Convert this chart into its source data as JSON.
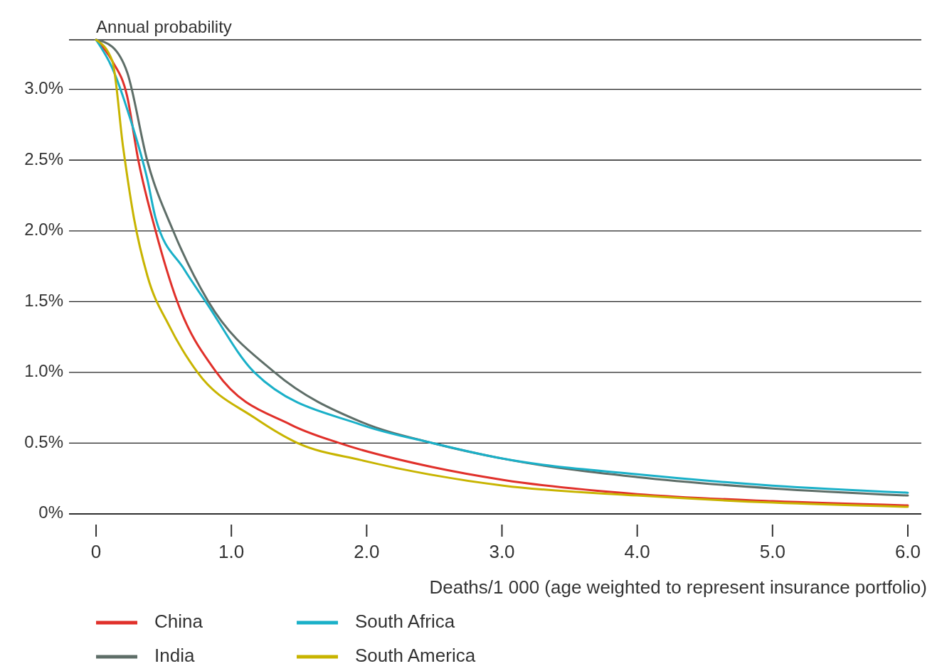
{
  "chart_data": {
    "type": "line",
    "ylabel": "Annual probability",
    "xlabel": "Deaths/1 000 (age weighted to represent insurance portfolio)",
    "xlim": [
      -0.2,
      6.1
    ],
    "ylim": [
      0,
      3.35
    ],
    "xticks": [
      0,
      {
        "value": 1,
        "label": "1.0"
      },
      {
        "value": 2,
        "label": "2.0"
      },
      {
        "value": 3,
        "label": "3.0"
      },
      {
        "value": 4,
        "label": "4.0"
      },
      {
        "value": 5,
        "label": "5.0"
      },
      {
        "value": 6,
        "label": "6.0"
      }
    ],
    "yticks": [
      {
        "value": 0,
        "label": "0%"
      },
      {
        "value": 0.5,
        "label": "0.5%"
      },
      {
        "value": 1,
        "label": "1.0%"
      },
      {
        "value": 1.5,
        "label": "1.5%"
      },
      {
        "value": 2,
        "label": "2.0%"
      },
      {
        "value": 2.5,
        "label": "2.5%"
      },
      {
        "value": 3,
        "label": "3.0%"
      }
    ],
    "grid": "y",
    "legend": "bottom",
    "marker": "none",
    "line_style": "solid",
    "series": [
      {
        "name": "China",
        "color": "#e0302a",
        "x": [
          0,
          0.12,
          0.23,
          0.31,
          0.44,
          0.6,
          0.89,
          1.44,
          1.8,
          2.49,
          3.01,
          4.0,
          5.0,
          6.0
        ],
        "values": [
          3.35,
          3.2,
          2.95,
          2.51,
          2.0,
          1.5,
          1.0,
          0.63,
          0.5,
          0.33,
          0.24,
          0.14,
          0.09,
          0.06
        ]
      },
      {
        "name": "India",
        "color": "#5e6e68",
        "x": [
          0,
          0.12,
          0.23,
          0.38,
          0.57,
          0.83,
          1.32,
          1.96,
          2.49,
          3.01,
          4.0,
          5.0,
          6.0
        ],
        "values": [
          3.35,
          3.3,
          3.12,
          2.49,
          2.0,
          1.5,
          1.0,
          0.65,
          0.5,
          0.39,
          0.26,
          0.18,
          0.13
        ]
      },
      {
        "name": "South Africa",
        "color": "#1ab0c8",
        "x": [
          0,
          0.12,
          0.25,
          0.38,
          0.44,
          0.65,
          0.81,
          1.17,
          1.96,
          2.49,
          3.01,
          4.0,
          5.0,
          6.0
        ],
        "values": [
          3.35,
          3.15,
          2.8,
          2.36,
          2.09,
          1.73,
          1.5,
          1.0,
          0.63,
          0.5,
          0.39,
          0.28,
          0.2,
          0.15
        ]
      },
      {
        "name": "South America",
        "color": "#c8b400",
        "x": [
          0,
          0.12,
          0.2,
          0.28,
          0.38,
          0.54,
          0.75,
          1.17,
          1.49,
          1.96,
          3.01,
          4.0,
          5.0,
          6.0
        ],
        "values": [
          3.35,
          3.2,
          2.59,
          2.09,
          1.68,
          1.33,
          1.0,
          0.68,
          0.5,
          0.38,
          0.2,
          0.13,
          0.08,
          0.05
        ]
      }
    ]
  }
}
